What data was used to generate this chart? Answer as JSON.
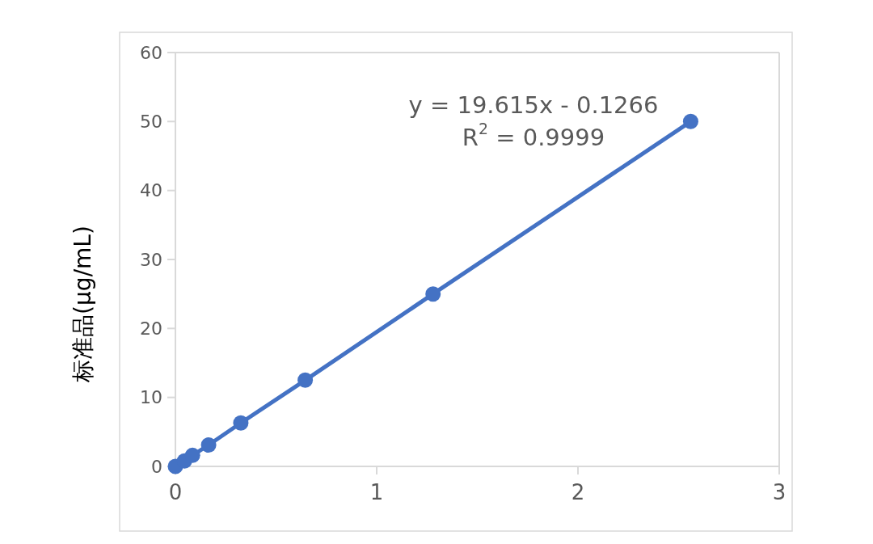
{
  "chart_data": {
    "type": "line",
    "ylabel": "标准品(μg/mL)",
    "x": [
      0,
      0.045,
      0.085,
      0.165,
      0.325,
      0.645,
      1.28,
      2.56
    ],
    "series": [
      {
        "color": "#4472c4",
        "values": [
          0,
          0.8,
          1.6,
          3.1,
          6.3,
          12.5,
          25,
          50
        ]
      }
    ],
    "xlim": [
      0,
      3
    ],
    "xticks": [
      0,
      1,
      2,
      3
    ],
    "ylim": [
      0,
      60
    ],
    "yticks": [
      0,
      10,
      20,
      30,
      40,
      50,
      60
    ],
    "marker": "circle",
    "line_style": "solid",
    "annotations": [
      "y = 19.615x - 0.1266",
      "R$^{2}$ = 0.9999"
    ]
  }
}
